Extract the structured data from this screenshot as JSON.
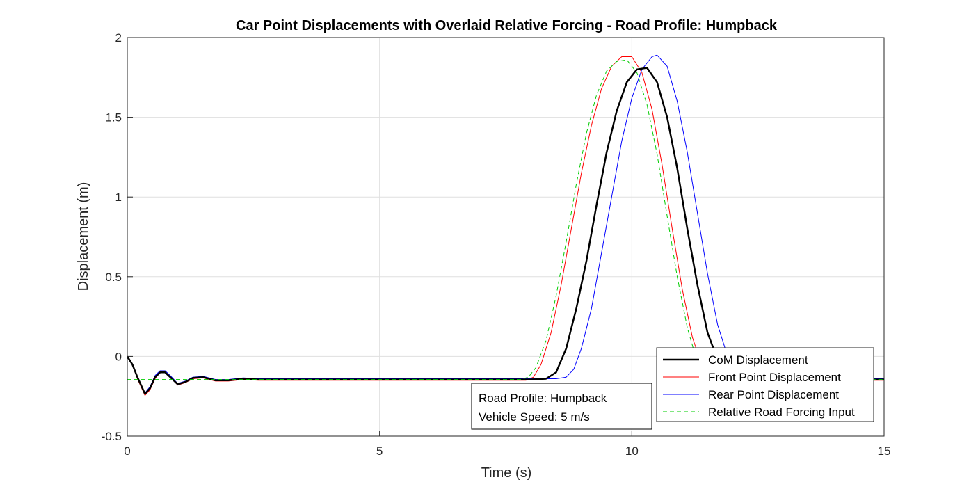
{
  "chart_data": {
    "type": "line",
    "title": "Car Point Displacements with Overlaid Relative Forcing - Road Profile: Humpback",
    "xlabel": "Time (s)",
    "ylabel": "Displacement (m)",
    "xlim": [
      0,
      15
    ],
    "ylim": [
      -0.5,
      2
    ],
    "xticks": [
      "0",
      "5",
      "10",
      "15"
    ],
    "yticks": [
      "-0.5",
      "0",
      "0.5",
      "1",
      "1.5",
      "2"
    ],
    "grid": true,
    "legend_position": "bottom-right",
    "series": [
      {
        "name": "CoM Displacement",
        "color": "#000000",
        "style": "solid-thick",
        "points": [
          [
            0,
            0
          ],
          [
            0.1,
            -0.05
          ],
          [
            0.2,
            -0.13
          ],
          [
            0.3,
            -0.2
          ],
          [
            0.35,
            -0.235
          ],
          [
            0.45,
            -0.2
          ],
          [
            0.55,
            -0.13
          ],
          [
            0.65,
            -0.1
          ],
          [
            0.75,
            -0.1
          ],
          [
            0.85,
            -0.13
          ],
          [
            1.0,
            -0.175
          ],
          [
            1.15,
            -0.16
          ],
          [
            1.3,
            -0.135
          ],
          [
            1.5,
            -0.13
          ],
          [
            1.75,
            -0.15
          ],
          [
            2.0,
            -0.15
          ],
          [
            2.3,
            -0.14
          ],
          [
            2.6,
            -0.145
          ],
          [
            3.0,
            -0.145
          ],
          [
            4,
            -0.145
          ],
          [
            5,
            -0.145
          ],
          [
            6,
            -0.145
          ],
          [
            7,
            -0.145
          ],
          [
            8.0,
            -0.145
          ],
          [
            8.3,
            -0.14
          ],
          [
            8.5,
            -0.1
          ],
          [
            8.7,
            0.05
          ],
          [
            8.9,
            0.3
          ],
          [
            9.1,
            0.6
          ],
          [
            9.3,
            0.95
          ],
          [
            9.5,
            1.28
          ],
          [
            9.7,
            1.54
          ],
          [
            9.9,
            1.72
          ],
          [
            10.1,
            1.8
          ],
          [
            10.3,
            1.81
          ],
          [
            10.5,
            1.72
          ],
          [
            10.7,
            1.5
          ],
          [
            10.9,
            1.18
          ],
          [
            11.1,
            0.8
          ],
          [
            11.3,
            0.45
          ],
          [
            11.5,
            0.15
          ],
          [
            11.7,
            -0.02
          ],
          [
            11.9,
            -0.1
          ],
          [
            12.2,
            -0.14
          ],
          [
            12.5,
            -0.145
          ],
          [
            13,
            -0.145
          ],
          [
            14,
            -0.145
          ],
          [
            15,
            -0.145
          ]
        ]
      },
      {
        "name": "Front Point Displacement",
        "color": "#ff0000",
        "style": "solid",
        "points": [
          [
            0,
            0
          ],
          [
            0.1,
            -0.05
          ],
          [
            0.2,
            -0.14
          ],
          [
            0.3,
            -0.21
          ],
          [
            0.35,
            -0.245
          ],
          [
            0.45,
            -0.21
          ],
          [
            0.55,
            -0.14
          ],
          [
            0.65,
            -0.1
          ],
          [
            0.75,
            -0.1
          ],
          [
            0.85,
            -0.13
          ],
          [
            1.0,
            -0.18
          ],
          [
            1.15,
            -0.165
          ],
          [
            1.3,
            -0.14
          ],
          [
            1.5,
            -0.135
          ],
          [
            1.75,
            -0.155
          ],
          [
            2.0,
            -0.155
          ],
          [
            2.3,
            -0.145
          ],
          [
            2.6,
            -0.15
          ],
          [
            3.0,
            -0.15
          ],
          [
            4,
            -0.15
          ],
          [
            5,
            -0.15
          ],
          [
            6,
            -0.15
          ],
          [
            7,
            -0.15
          ],
          [
            7.9,
            -0.15
          ],
          [
            8.05,
            -0.13
          ],
          [
            8.2,
            -0.05
          ],
          [
            8.4,
            0.15
          ],
          [
            8.6,
            0.45
          ],
          [
            8.8,
            0.8
          ],
          [
            9.0,
            1.15
          ],
          [
            9.2,
            1.45
          ],
          [
            9.4,
            1.68
          ],
          [
            9.6,
            1.82
          ],
          [
            9.8,
            1.88
          ],
          [
            10.0,
            1.88
          ],
          [
            10.2,
            1.78
          ],
          [
            10.4,
            1.55
          ],
          [
            10.6,
            1.2
          ],
          [
            10.8,
            0.8
          ],
          [
            11.0,
            0.42
          ],
          [
            11.2,
            0.12
          ],
          [
            11.4,
            -0.07
          ],
          [
            11.6,
            -0.14
          ],
          [
            11.9,
            -0.155
          ],
          [
            12.5,
            -0.15
          ],
          [
            13,
            -0.15
          ],
          [
            14,
            -0.15
          ],
          [
            15,
            -0.15
          ]
        ]
      },
      {
        "name": "Rear Point Displacement",
        "color": "#0000ff",
        "style": "solid",
        "points": [
          [
            0,
            0
          ],
          [
            0.1,
            -0.05
          ],
          [
            0.2,
            -0.13
          ],
          [
            0.3,
            -0.2
          ],
          [
            0.35,
            -0.23
          ],
          [
            0.45,
            -0.19
          ],
          [
            0.55,
            -0.12
          ],
          [
            0.65,
            -0.09
          ],
          [
            0.75,
            -0.09
          ],
          [
            0.85,
            -0.12
          ],
          [
            1.0,
            -0.17
          ],
          [
            1.15,
            -0.155
          ],
          [
            1.3,
            -0.13
          ],
          [
            1.5,
            -0.125
          ],
          [
            1.75,
            -0.145
          ],
          [
            2.0,
            -0.145
          ],
          [
            2.3,
            -0.135
          ],
          [
            2.6,
            -0.14
          ],
          [
            3.0,
            -0.14
          ],
          [
            4,
            -0.14
          ],
          [
            5,
            -0.14
          ],
          [
            6,
            -0.14
          ],
          [
            7,
            -0.14
          ],
          [
            8.0,
            -0.14
          ],
          [
            8.5,
            -0.14
          ],
          [
            8.7,
            -0.13
          ],
          [
            8.85,
            -0.08
          ],
          [
            9.0,
            0.05
          ],
          [
            9.2,
            0.3
          ],
          [
            9.4,
            0.65
          ],
          [
            9.6,
            1.0
          ],
          [
            9.8,
            1.35
          ],
          [
            10.0,
            1.62
          ],
          [
            10.2,
            1.8
          ],
          [
            10.4,
            1.88
          ],
          [
            10.5,
            1.89
          ],
          [
            10.7,
            1.82
          ],
          [
            10.9,
            1.6
          ],
          [
            11.1,
            1.28
          ],
          [
            11.3,
            0.9
          ],
          [
            11.5,
            0.52
          ],
          [
            11.7,
            0.2
          ],
          [
            11.9,
            0.0
          ],
          [
            12.1,
            -0.1
          ],
          [
            12.3,
            -0.14
          ],
          [
            12.6,
            -0.145
          ],
          [
            13,
            -0.14
          ],
          [
            14,
            -0.14
          ],
          [
            15,
            -0.14
          ]
        ]
      },
      {
        "name": "Relative Road Forcing Input",
        "color": "#00cc00",
        "style": "dashed",
        "points": [
          [
            0,
            -0.145
          ],
          [
            1,
            -0.145
          ],
          [
            2,
            -0.145
          ],
          [
            3,
            -0.145
          ],
          [
            4,
            -0.145
          ],
          [
            5,
            -0.145
          ],
          [
            6,
            -0.145
          ],
          [
            7,
            -0.145
          ],
          [
            7.8,
            -0.145
          ],
          [
            7.95,
            -0.13
          ],
          [
            8.1,
            -0.07
          ],
          [
            8.3,
            0.1
          ],
          [
            8.5,
            0.38
          ],
          [
            8.7,
            0.72
          ],
          [
            8.9,
            1.08
          ],
          [
            9.1,
            1.4
          ],
          [
            9.3,
            1.64
          ],
          [
            9.5,
            1.79
          ],
          [
            9.7,
            1.85
          ],
          [
            9.9,
            1.86
          ],
          [
            10.1,
            1.78
          ],
          [
            10.3,
            1.58
          ],
          [
            10.5,
            1.27
          ],
          [
            10.7,
            0.88
          ],
          [
            10.9,
            0.5
          ],
          [
            11.1,
            0.18
          ],
          [
            11.3,
            -0.04
          ],
          [
            11.5,
            -0.13
          ],
          [
            11.7,
            -0.145
          ],
          [
            12,
            -0.145
          ],
          [
            13,
            -0.145
          ],
          [
            14,
            -0.145
          ],
          [
            15,
            -0.145
          ]
        ]
      }
    ],
    "annotation": {
      "lines": [
        "Road Profile: Humpback",
        "Vehicle Speed: 5 m/s"
      ]
    }
  }
}
